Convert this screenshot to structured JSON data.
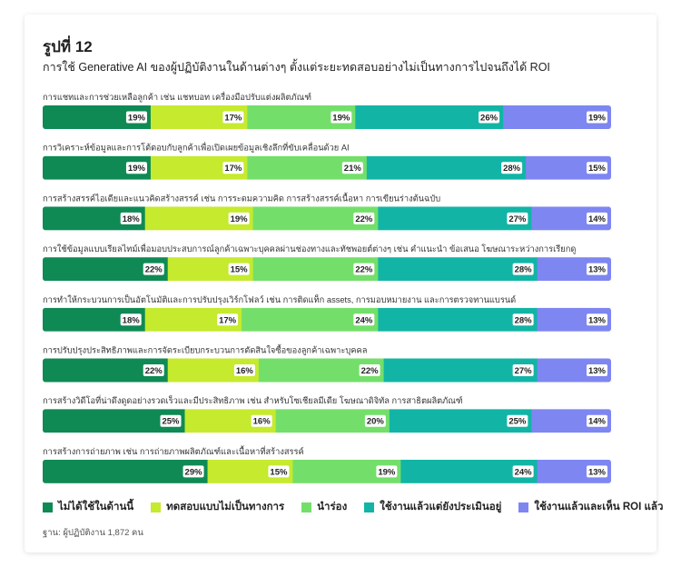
{
  "header": {
    "title": "รูปที่ 12",
    "subtitle": "การใช้ Generative AI ของผู้ปฏิบัติงานในด้านต่างๆ ตั้งแต่ระยะทดสอบอย่างไม่เป็นทางการไปจนถึงได้ ROI"
  },
  "note": "ฐาน: ผู้ปฏิบัติงาน 1,872 คน",
  "chart_data": {
    "type": "bar",
    "orientation": "horizontal",
    "stacked": true,
    "unit": "%",
    "legend_position": "bottom",
    "grid": false,
    "categories": [
      "การแชทและการช่วยเหลือลูกค้า เช่น แชทบอท เครื่องมือปรับแต่งผลิตภัณฑ์",
      "การวิเคราะห์ข้อมูลและการโต้ตอบกับลูกค้าเพื่อเปิดเผยข้อมูลเชิงลึกที่ขับเคลื่อนด้วย AI",
      "การสร้างสรรค์ไอเดียและแนวคิดสร้างสรรค์ เช่น การระดมความคิด การสร้างสรรค์เนื้อหา การเขียนร่างต้นฉบับ",
      "การใช้ข้อมูลแบบเรียลไทม์เพื่อมอบประสบการณ์ลูกค้าเฉพาะบุคคลผ่านช่องทางและทัชพอยต์ต่างๆ เช่น คำแนะนำ ข้อเสนอ โฆษณาระหว่างการเรียกดู",
      "การทำให้กระบวนการเป็นอัตโนมัติและการปรับปรุงเวิร์กโฟลว์ เช่น การติดแท็ก assets, การมอบหมายงาน และการตรวจทานแบรนด์",
      "การปรับปรุงประสิทธิภาพและการจัดระเบียบกระบวนการตัดสินใจซื้อของลูกค้าเฉพาะบุคคล",
      "การสร้างวิดีโอที่น่าดึงดูดอย่างรวดเร็วและมีประสิทธิภาพ เช่น สำหรับโซเชียลมีเดีย โฆษณาดิจิทัล การสาธิตผลิตภัณฑ์",
      "การสร้างการถ่ายภาพ เช่น การถ่ายภาพผลิตภัณฑ์และเนื้อหาที่สร้างสรรค์"
    ],
    "series": [
      {
        "name": "ไม่ได้ใช้ในด้านนี้",
        "color": "#0f8a55",
        "values": [
          19,
          19,
          18,
          22,
          18,
          22,
          25,
          29
        ]
      },
      {
        "name": "ทดสอบแบบไม่เป็นทางการ",
        "color": "#c5ea2e",
        "values": [
          17,
          17,
          19,
          15,
          17,
          16,
          16,
          15
        ]
      },
      {
        "name": "นำร่อง",
        "color": "#73df6a",
        "values": [
          19,
          21,
          22,
          22,
          24,
          22,
          20,
          19
        ]
      },
      {
        "name": "ใช้งานแล้วแต่ยังประเมินอยู่",
        "color": "#12b5a5",
        "values": [
          26,
          28,
          27,
          28,
          28,
          27,
          25,
          24
        ]
      },
      {
        "name": "ใช้งานแล้วและเห็น ROI แล้ว",
        "color": "#7e86f2",
        "values": [
          19,
          15,
          14,
          13,
          13,
          13,
          14,
          13
        ]
      }
    ]
  }
}
